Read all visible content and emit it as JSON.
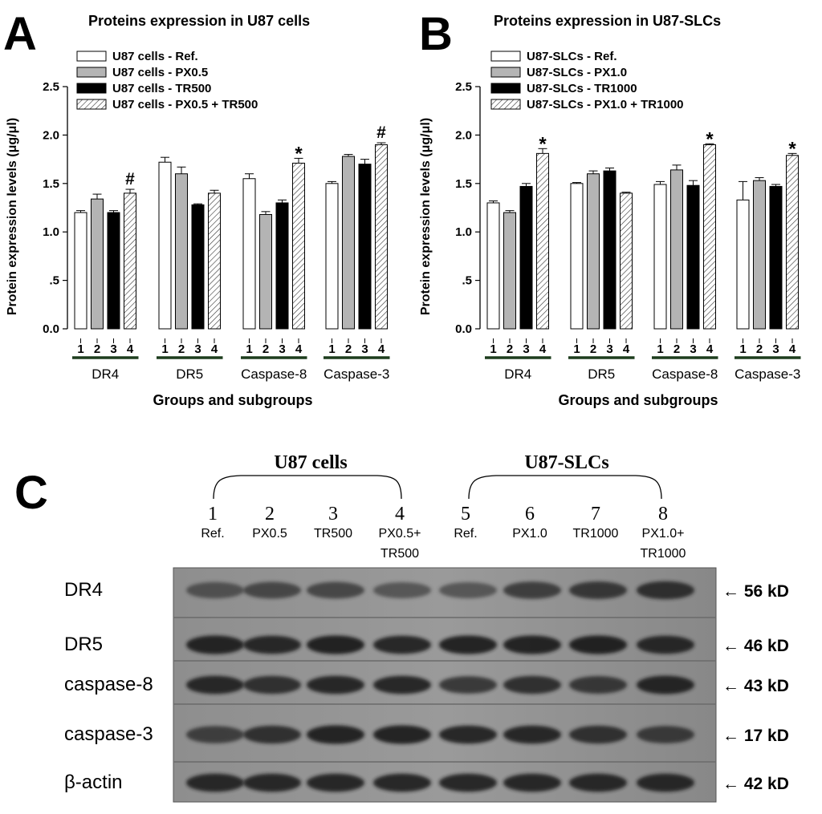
{
  "panel_letters": [
    "A",
    "B",
    "C"
  ],
  "chart_data": [
    {
      "type": "bar",
      "panel": "A",
      "title": "Proteins expression in U87 cells",
      "ylabel": "Protein expression levels (μg/μl)",
      "xlabel": "Groups and subgroups",
      "ylim": [
        0,
        2.5
      ],
      "yticks": [
        0,
        0.5,
        1.0,
        1.5,
        2.0,
        2.5
      ],
      "ytick_labels": [
        "0.0",
        ".5",
        "1.0",
        "1.5",
        "2.0",
        "2.5"
      ],
      "categories": [
        "DR4",
        "DR5",
        "Caspase-8",
        "Caspase-3"
      ],
      "subgroup_labels": [
        "1",
        "2",
        "3",
        "4"
      ],
      "legend": "top-left",
      "series": [
        {
          "name": "U87 cells - Ref.",
          "fill": "#ffffff",
          "values": [
            1.2,
            1.72,
            1.55,
            1.5
          ],
          "errors": [
            0.02,
            0.05,
            0.05,
            0.02
          ]
        },
        {
          "name": "U87 cells - PX0.5",
          "fill": "#b4b4b4",
          "values": [
            1.34,
            1.6,
            1.18,
            1.78
          ],
          "errors": [
            0.05,
            0.07,
            0.03,
            0.02
          ]
        },
        {
          "name": "U87 cells - TR500",
          "fill": "#000000",
          "values": [
            1.2,
            1.28,
            1.3,
            1.7
          ],
          "errors": [
            0.02,
            0.01,
            0.03,
            0.05
          ]
        },
        {
          "name": "U87 cells - PX0.5 + TR500",
          "fill": "hatch",
          "values": [
            1.4,
            1.4,
            1.71,
            1.9
          ],
          "errors": [
            0.04,
            0.03,
            0.05,
            0.02
          ]
        }
      ],
      "annotations": [
        {
          "category": "DR4",
          "subgroup": 4,
          "text": "#"
        },
        {
          "category": "Caspase-8",
          "subgroup": 4,
          "text": "*"
        },
        {
          "category": "Caspase-3",
          "subgroup": 4,
          "text": "#"
        }
      ]
    },
    {
      "type": "bar",
      "panel": "B",
      "title": "Proteins expression in U87-SLCs",
      "ylabel": "Protein expression levels (μg/μl)",
      "xlabel": "Groups and subgroups",
      "ylim": [
        0,
        2.5
      ],
      "yticks": [
        0,
        0.5,
        1.0,
        1.5,
        2.0,
        2.5
      ],
      "ytick_labels": [
        "0.0",
        ".5",
        "1.0",
        "1.5",
        "2.0",
        "2.5"
      ],
      "categories": [
        "DR4",
        "DR5",
        "Caspase-8",
        "Caspase-3"
      ],
      "subgroup_labels": [
        "1",
        "2",
        "3",
        "4"
      ],
      "legend": "top-left",
      "series": [
        {
          "name": "U87-SLCs - Ref.",
          "fill": "#ffffff",
          "values": [
            1.3,
            1.5,
            1.49,
            1.33
          ],
          "errors": [
            0.02,
            0.01,
            0.03,
            0.19
          ]
        },
        {
          "name": "U87-SLCs - PX1.0",
          "fill": "#b4b4b4",
          "values": [
            1.2,
            1.6,
            1.64,
            1.53
          ],
          "errors": [
            0.02,
            0.03,
            0.05,
            0.03
          ]
        },
        {
          "name": "U87-SLCs - TR1000",
          "fill": "#000000",
          "values": [
            1.47,
            1.63,
            1.48,
            1.47
          ],
          "errors": [
            0.03,
            0.03,
            0.05,
            0.02
          ]
        },
        {
          "name": "U87-SLCs - PX1.0 + TR1000",
          "fill": "hatch",
          "values": [
            1.81,
            1.4,
            1.9,
            1.79
          ],
          "errors": [
            0.05,
            0.01,
            0.01,
            0.02
          ]
        }
      ],
      "annotations": [
        {
          "category": "DR4",
          "subgroup": 4,
          "text": "*"
        },
        {
          "category": "Caspase-8",
          "subgroup": 4,
          "text": "*"
        },
        {
          "category": "Caspase-3",
          "subgroup": 4,
          "text": "*"
        }
      ]
    }
  ],
  "blot": {
    "group_labels": [
      "U87 cells",
      "U87-SLCs"
    ],
    "lane_numbers": [
      "1",
      "2",
      "3",
      "4",
      "5",
      "6",
      "7",
      "8"
    ],
    "lane_labels": [
      "Ref.",
      "PX0.5",
      "TR500",
      "PX0.5+\nTR500",
      "Ref.",
      "PX1.0",
      "TR1000",
      "PX1.0+\nTR1000"
    ],
    "rows": [
      {
        "protein": "DR4",
        "size": "← 56 kD",
        "intensities": [
          0.55,
          0.62,
          0.62,
          0.5,
          0.5,
          0.7,
          0.75,
          0.82
        ]
      },
      {
        "protein": "DR5",
        "size": "← 46 kD",
        "intensities": [
          0.9,
          0.85,
          0.92,
          0.85,
          0.9,
          0.9,
          0.92,
          0.85
        ]
      },
      {
        "protein": "caspase-8",
        "size": "← 43 kD",
        "intensities": [
          0.85,
          0.8,
          0.85,
          0.85,
          0.72,
          0.8,
          0.75,
          0.88
        ]
      },
      {
        "protein": "caspase-3",
        "size": "← 17 kD",
        "intensities": [
          0.7,
          0.8,
          0.9,
          0.9,
          0.85,
          0.85,
          0.8,
          0.72
        ]
      },
      {
        "protein": "β-actin",
        "size": "← 42 kD",
        "intensities": [
          0.85,
          0.85,
          0.85,
          0.85,
          0.85,
          0.85,
          0.85,
          0.85
        ]
      }
    ]
  }
}
